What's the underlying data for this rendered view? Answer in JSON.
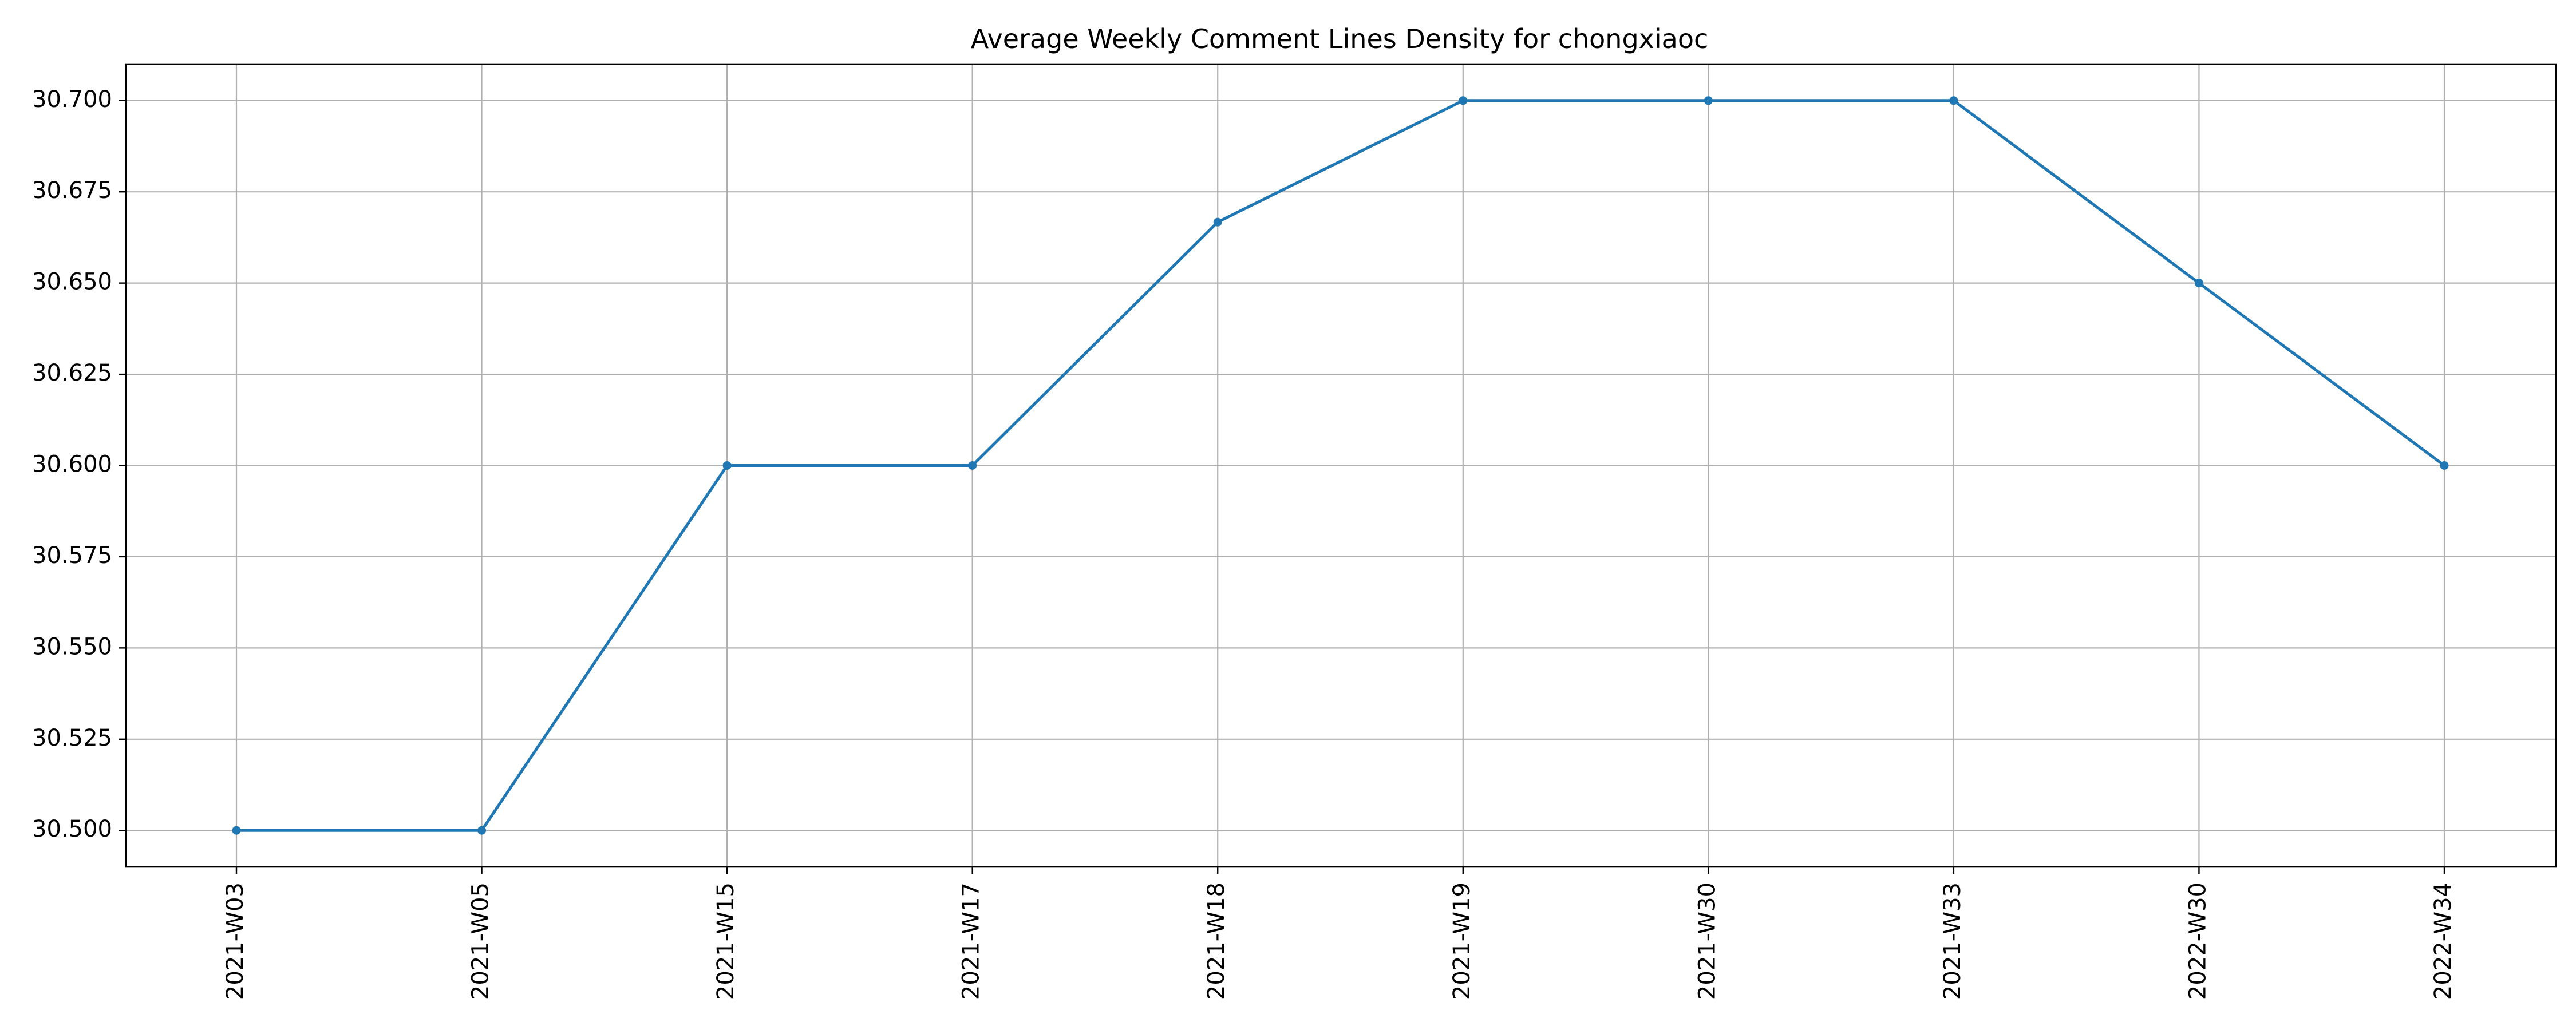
{
  "chart_data": {
    "type": "line",
    "title": "Average Weekly Comment Lines Density for chongxiaoc",
    "xlabel": "",
    "ylabel": "",
    "categories": [
      "2021-W03",
      "2021-W05",
      "2021-W15",
      "2021-W17",
      "2021-W18",
      "2021-W19",
      "2021-W30",
      "2021-W33",
      "2022-W30",
      "2022-W34"
    ],
    "series": [
      {
        "values": [
          30.5,
          30.5,
          30.6,
          30.6,
          30.6667,
          30.7,
          30.7,
          30.7,
          30.65,
          30.6
        ]
      }
    ],
    "ylim": [
      30.49,
      30.71
    ],
    "yticks": [
      30.5,
      30.525,
      30.55,
      30.575,
      30.6,
      30.625,
      30.65,
      30.675,
      30.7
    ],
    "ytick_labels": [
      "30.500",
      "30.525",
      "30.550",
      "30.575",
      "30.600",
      "30.625",
      "30.650",
      "30.675",
      "30.700"
    ],
    "grid": true,
    "marker": "circle",
    "colors": {
      "line": "#1f77b4",
      "grid": "#b0b0b0",
      "axes": "#000000"
    }
  }
}
